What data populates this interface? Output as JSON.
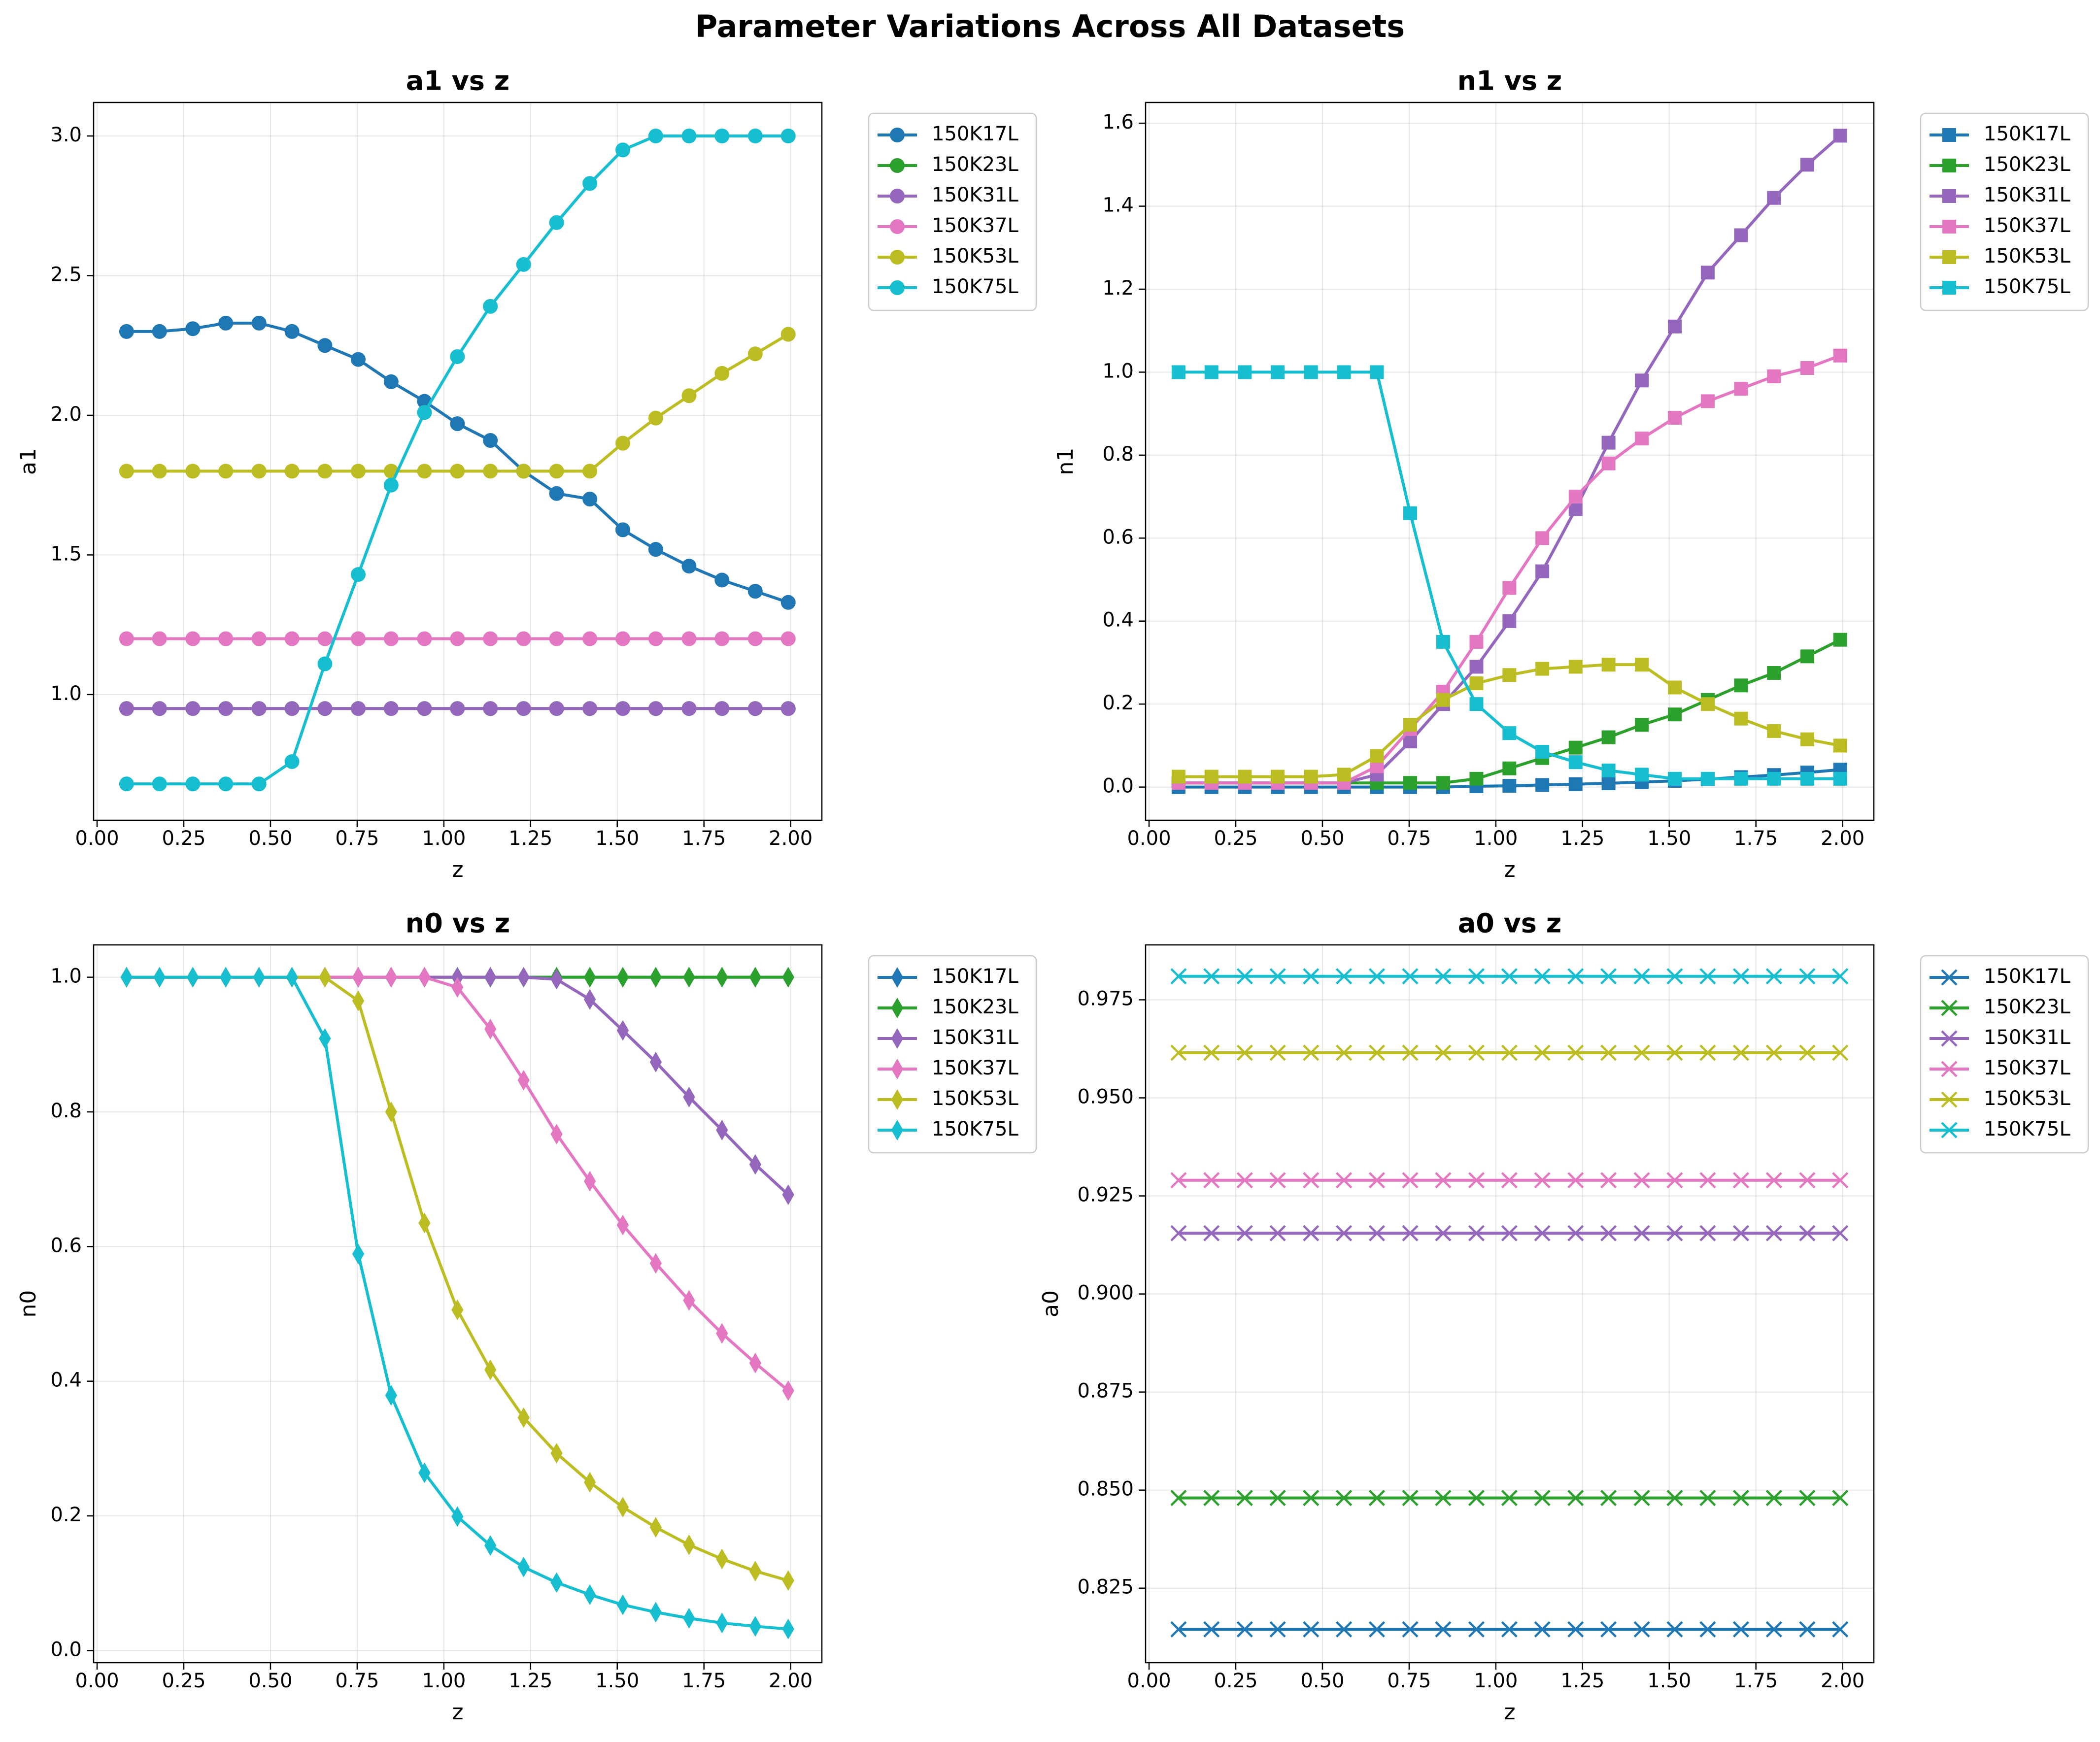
{
  "figure": {
    "title": "Parameter Variations Across All Datasets"
  },
  "colors": {
    "150K17L": "#1f77b4",
    "150K23L": "#2ca02c",
    "150K31L": "#9467bd",
    "150K37L": "#e377c2",
    "150K53L": "#bcbd22",
    "150K75L": "#17becf"
  },
  "chart_data": [
    {
      "type": "line",
      "title": "a1 vs z",
      "xlabel": "z",
      "ylabel": "a1",
      "marker": "circle",
      "xlim": [
        -0.01,
        2.09
      ],
      "ylim": [
        0.55,
        3.12
      ],
      "xticks": [
        0.0,
        0.25,
        0.5,
        0.75,
        1.0,
        1.25,
        1.5,
        1.75,
        2.0
      ],
      "xtick_labels": [
        "0.00",
        "0.25",
        "0.50",
        "0.75",
        "1.00",
        "1.25",
        "1.50",
        "1.75",
        "2.00"
      ],
      "yticks": [
        1.0,
        1.5,
        2.0,
        2.5,
        3.0
      ],
      "ytick_labels": [
        "1.0",
        "1.5",
        "2.0",
        "2.5",
        "3.0"
      ],
      "grid": true,
      "legend": "outside-right",
      "x": [
        0.085,
        0.18,
        0.276,
        0.371,
        0.467,
        0.562,
        0.657,
        0.753,
        0.848,
        0.944,
        1.039,
        1.134,
        1.23,
        1.325,
        1.421,
        1.516,
        1.611,
        1.707,
        1.802,
        1.898,
        1.993
      ],
      "series": [
        {
          "name": "150K17L",
          "values": [
            2.3,
            2.3,
            2.31,
            2.33,
            2.33,
            2.3,
            2.25,
            2.2,
            2.12,
            2.05,
            1.97,
            1.91,
            1.8,
            1.72,
            1.7,
            1.59,
            1.52,
            1.46,
            1.41,
            1.37,
            1.33
          ]
        },
        {
          "name": "150K23L",
          "values": [
            0.95,
            0.95,
            0.95,
            0.95,
            0.95,
            0.95,
            0.95,
            0.95,
            0.95,
            0.95,
            0.95,
            0.95,
            0.95,
            0.95,
            0.95,
            0.95,
            0.95,
            0.95,
            0.95,
            0.95,
            0.95
          ]
        },
        {
          "name": "150K31L",
          "values": [
            0.95,
            0.95,
            0.95,
            0.95,
            0.95,
            0.95,
            0.95,
            0.95,
            0.95,
            0.95,
            0.95,
            0.95,
            0.95,
            0.95,
            0.95,
            0.95,
            0.95,
            0.95,
            0.95,
            0.95,
            0.95
          ]
        },
        {
          "name": "150K37L",
          "values": [
            1.2,
            1.2,
            1.2,
            1.2,
            1.2,
            1.2,
            1.2,
            1.2,
            1.2,
            1.2,
            1.2,
            1.2,
            1.2,
            1.2,
            1.2,
            1.2,
            1.2,
            1.2,
            1.2,
            1.2,
            1.2
          ]
        },
        {
          "name": "150K53L",
          "values": [
            1.8,
            1.8,
            1.8,
            1.8,
            1.8,
            1.8,
            1.8,
            1.8,
            1.8,
            1.8,
            1.8,
            1.8,
            1.8,
            1.8,
            1.8,
            1.9,
            1.99,
            2.07,
            2.15,
            2.22,
            2.29
          ]
        },
        {
          "name": "150K75L",
          "values": [
            0.68,
            0.68,
            0.68,
            0.68,
            0.68,
            0.76,
            1.11,
            1.43,
            1.75,
            2.01,
            2.21,
            2.39,
            2.54,
            2.69,
            2.83,
            2.95,
            3.0,
            3.0,
            3.0,
            3.0,
            3.0
          ]
        }
      ]
    },
    {
      "type": "line",
      "title": "n1 vs z",
      "xlabel": "z",
      "ylabel": "n1",
      "marker": "square",
      "xlim": [
        -0.01,
        2.09
      ],
      "ylim": [
        -0.08,
        1.65
      ],
      "xticks": [
        0.0,
        0.25,
        0.5,
        0.75,
        1.0,
        1.25,
        1.5,
        1.75,
        2.0
      ],
      "xtick_labels": [
        "0.00",
        "0.25",
        "0.50",
        "0.75",
        "1.00",
        "1.25",
        "1.50",
        "1.75",
        "2.00"
      ],
      "yticks": [
        0.0,
        0.2,
        0.4,
        0.6,
        0.8,
        1.0,
        1.2,
        1.4,
        1.6
      ],
      "ytick_labels": [
        "0.0",
        "0.2",
        "0.4",
        "0.6",
        "0.8",
        "1.0",
        "1.2",
        "1.4",
        "1.6"
      ],
      "grid": true,
      "legend": "outside-right",
      "x": [
        0.085,
        0.18,
        0.276,
        0.371,
        0.467,
        0.562,
        0.657,
        0.753,
        0.848,
        0.944,
        1.039,
        1.134,
        1.23,
        1.325,
        1.421,
        1.516,
        1.611,
        1.707,
        1.802,
        1.898,
        1.993
      ],
      "series": [
        {
          "name": "150K17L",
          "values": [
            0.0,
            0.0,
            0.0,
            0.0,
            0.0,
            0.0,
            0.0,
            0.0,
            0.0,
            0.002,
            0.003,
            0.005,
            0.007,
            0.009,
            0.012,
            0.015,
            0.019,
            0.024,
            0.029,
            0.035,
            0.042
          ]
        },
        {
          "name": "150K23L",
          "values": [
            0.01,
            0.01,
            0.01,
            0.01,
            0.01,
            0.01,
            0.01,
            0.01,
            0.01,
            0.02,
            0.045,
            0.07,
            0.095,
            0.12,
            0.15,
            0.175,
            0.21,
            0.245,
            0.275,
            0.315,
            0.355
          ]
        },
        {
          "name": "150K31L",
          "values": [
            0.01,
            0.01,
            0.01,
            0.01,
            0.01,
            0.01,
            0.03,
            0.11,
            0.2,
            0.29,
            0.4,
            0.52,
            0.67,
            0.83,
            0.98,
            1.11,
            1.24,
            1.33,
            1.42,
            1.5,
            1.57
          ]
        },
        {
          "name": "150K37L",
          "values": [
            0.01,
            0.01,
            0.01,
            0.01,
            0.01,
            0.01,
            0.05,
            0.14,
            0.23,
            0.35,
            0.48,
            0.6,
            0.7,
            0.78,
            0.84,
            0.89,
            0.93,
            0.96,
            0.99,
            1.01,
            1.04
          ]
        },
        {
          "name": "150K53L",
          "values": [
            0.025,
            0.025,
            0.025,
            0.025,
            0.025,
            0.03,
            0.075,
            0.15,
            0.21,
            0.25,
            0.27,
            0.285,
            0.29,
            0.295,
            0.295,
            0.24,
            0.2,
            0.165,
            0.135,
            0.115,
            0.1
          ]
        },
        {
          "name": "150K75L",
          "values": [
            1.0,
            1.0,
            1.0,
            1.0,
            1.0,
            1.0,
            1.0,
            0.66,
            0.35,
            0.2,
            0.13,
            0.085,
            0.06,
            0.04,
            0.03,
            0.02,
            0.02,
            0.02,
            0.02,
            0.02,
            0.02
          ]
        }
      ]
    },
    {
      "type": "line",
      "title": "n0 vs z",
      "xlabel": "z",
      "ylabel": "n0",
      "marker": "thin_diamond",
      "xlim": [
        -0.01,
        2.09
      ],
      "ylim": [
        -0.018,
        1.048
      ],
      "xticks": [
        0.0,
        0.25,
        0.5,
        0.75,
        1.0,
        1.25,
        1.5,
        1.75,
        2.0
      ],
      "xtick_labels": [
        "0.00",
        "0.25",
        "0.50",
        "0.75",
        "1.00",
        "1.25",
        "1.50",
        "1.75",
        "2.00"
      ],
      "yticks": [
        0.0,
        0.2,
        0.4,
        0.6,
        0.8,
        1.0
      ],
      "ytick_labels": [
        "0.0",
        "0.2",
        "0.4",
        "0.6",
        "0.8",
        "1.0"
      ],
      "grid": true,
      "legend": "outside-right",
      "x": [
        0.085,
        0.18,
        0.276,
        0.371,
        0.467,
        0.562,
        0.657,
        0.753,
        0.848,
        0.944,
        1.039,
        1.134,
        1.23,
        1.325,
        1.421,
        1.516,
        1.611,
        1.707,
        1.802,
        1.898,
        1.993
      ],
      "series": [
        {
          "name": "150K17L",
          "values": [
            1.0,
            1.0,
            1.0,
            1.0,
            1.0,
            1.0,
            1.0,
            1.0,
            1.0,
            1.0,
            1.0,
            1.0,
            1.0,
            1.0,
            1.0,
            1.0,
            1.0,
            1.0,
            1.0,
            1.0,
            1.0
          ]
        },
        {
          "name": "150K23L",
          "values": [
            1.0,
            1.0,
            1.0,
            1.0,
            1.0,
            1.0,
            1.0,
            1.0,
            1.0,
            1.0,
            1.0,
            1.0,
            1.0,
            1.0,
            1.0,
            1.0,
            1.0,
            1.0,
            1.0,
            1.0,
            1.0
          ]
        },
        {
          "name": "150K31L",
          "values": [
            1.0,
            1.0,
            1.0,
            1.0,
            1.0,
            1.0,
            1.0,
            1.0,
            1.0,
            1.0,
            1.0,
            1.0,
            1.0,
            0.997,
            0.967,
            0.921,
            0.874,
            0.822,
            0.773,
            0.722,
            0.677
          ]
        },
        {
          "name": "150K37L",
          "values": [
            1.0,
            1.0,
            1.0,
            1.0,
            1.0,
            1.0,
            1.0,
            1.0,
            1.0,
            1.0,
            0.985,
            0.923,
            0.847,
            0.767,
            0.697,
            0.632,
            0.575,
            0.52,
            0.471,
            0.427,
            0.386
          ]
        },
        {
          "name": "150K53L",
          "values": [
            1.0,
            1.0,
            1.0,
            1.0,
            1.0,
            1.0,
            1.0,
            0.965,
            0.8,
            0.635,
            0.506,
            0.417,
            0.346,
            0.293,
            0.25,
            0.213,
            0.183,
            0.157,
            0.136,
            0.118,
            0.104
          ]
        },
        {
          "name": "150K75L",
          "values": [
            1.0,
            1.0,
            1.0,
            1.0,
            1.0,
            1.0,
            0.909,
            0.589,
            0.379,
            0.264,
            0.199,
            0.156,
            0.124,
            0.101,
            0.083,
            0.068,
            0.057,
            0.048,
            0.041,
            0.036,
            0.032
          ]
        }
      ]
    },
    {
      "type": "line",
      "title": "a0 vs z",
      "xlabel": "z",
      "ylabel": "a0",
      "marker": "x",
      "xlim": [
        -0.01,
        2.09
      ],
      "ylim": [
        0.806,
        0.989
      ],
      "xticks": [
        0.0,
        0.25,
        0.5,
        0.75,
        1.0,
        1.25,
        1.5,
        1.75,
        2.0
      ],
      "xtick_labels": [
        "0.00",
        "0.25",
        "0.50",
        "0.75",
        "1.00",
        "1.25",
        "1.50",
        "1.75",
        "2.00"
      ],
      "yticks": [
        0.825,
        0.85,
        0.875,
        0.9,
        0.925,
        0.95,
        0.975
      ],
      "ytick_labels": [
        "0.825",
        "0.850",
        "0.875",
        "0.900",
        "0.925",
        "0.950",
        "0.975"
      ],
      "grid": true,
      "legend": "outside-right",
      "x": [
        0.085,
        0.18,
        0.276,
        0.371,
        0.467,
        0.562,
        0.657,
        0.753,
        0.848,
        0.944,
        1.039,
        1.134,
        1.23,
        1.325,
        1.421,
        1.516,
        1.611,
        1.707,
        1.802,
        1.898,
        1.993
      ],
      "series": [
        {
          "name": "150K17L",
          "values": [
            0.8145,
            0.8145,
            0.8145,
            0.8145,
            0.8145,
            0.8145,
            0.8145,
            0.8145,
            0.8145,
            0.8145,
            0.8145,
            0.8145,
            0.8145,
            0.8145,
            0.8145,
            0.8145,
            0.8145,
            0.8145,
            0.8145,
            0.8145,
            0.8145
          ]
        },
        {
          "name": "150K23L",
          "values": [
            0.848,
            0.848,
            0.848,
            0.848,
            0.848,
            0.848,
            0.848,
            0.848,
            0.848,
            0.848,
            0.848,
            0.848,
            0.848,
            0.848,
            0.848,
            0.848,
            0.848,
            0.848,
            0.848,
            0.848,
            0.848
          ]
        },
        {
          "name": "150K31L",
          "values": [
            0.9155,
            0.9155,
            0.9155,
            0.9155,
            0.9155,
            0.9155,
            0.9155,
            0.9155,
            0.9155,
            0.9155,
            0.9155,
            0.9155,
            0.9155,
            0.9155,
            0.9155,
            0.9155,
            0.9155,
            0.9155,
            0.9155,
            0.9155,
            0.9155
          ]
        },
        {
          "name": "150K37L",
          "values": [
            0.929,
            0.929,
            0.929,
            0.929,
            0.929,
            0.929,
            0.929,
            0.929,
            0.929,
            0.929,
            0.929,
            0.929,
            0.929,
            0.929,
            0.929,
            0.929,
            0.929,
            0.929,
            0.929,
            0.929,
            0.929
          ]
        },
        {
          "name": "150K53L",
          "values": [
            0.9615,
            0.9615,
            0.9615,
            0.9615,
            0.9615,
            0.9615,
            0.9615,
            0.9615,
            0.9615,
            0.9615,
            0.9615,
            0.9615,
            0.9615,
            0.9615,
            0.9615,
            0.9615,
            0.9615,
            0.9615,
            0.9615,
            0.9615,
            0.9615
          ]
        },
        {
          "name": "150K75L",
          "values": [
            0.981,
            0.981,
            0.981,
            0.981,
            0.981,
            0.981,
            0.981,
            0.981,
            0.981,
            0.981,
            0.981,
            0.981,
            0.981,
            0.981,
            0.981,
            0.981,
            0.981,
            0.981,
            0.981,
            0.981,
            0.981
          ]
        }
      ]
    }
  ]
}
